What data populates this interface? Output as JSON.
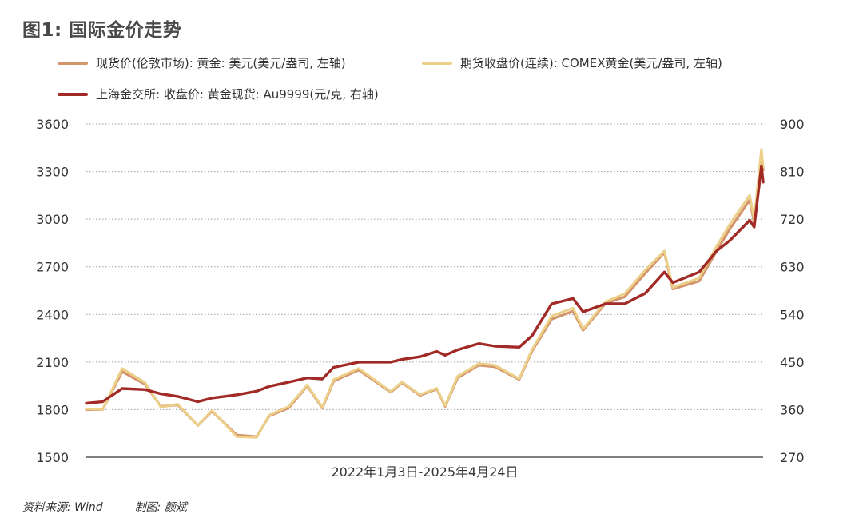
{
  "figure": {
    "title": "图1: 国际金价走势",
    "source": "资料来源: Wind",
    "maker": "制图: 颜斌"
  },
  "chart_data": {
    "type": "line",
    "title": "图1: 国际金价走势",
    "xlabel": "2022年1月3日-2025年4月24日",
    "x_range": [
      "2022-01-03",
      "2025-04-24"
    ],
    "left_axis": {
      "ylim": [
        1500,
        3600
      ],
      "ticks": [
        "3600",
        "3300",
        "3000",
        "2700",
        "2400",
        "2100",
        "1800",
        "1500"
      ]
    },
    "right_axis": {
      "ylim": [
        270,
        900
      ],
      "ticks": [
        "900",
        "810",
        "720",
        "630",
        "540",
        "450",
        "360",
        "270"
      ]
    },
    "grid": true,
    "legend_position": "top",
    "series": [
      {
        "name": "现货价(伦敦市场): 黄金: 美元(美元/盎司, 左轴)",
        "axis": "left",
        "color": "#d4956a",
        "x": [
          "2022-01-03",
          "2022-02-01",
          "2022-03-08",
          "2022-04-18",
          "2022-05-16",
          "2022-06-15",
          "2022-07-21",
          "2022-08-15",
          "2022-09-28",
          "2022-11-03",
          "2022-11-25",
          "2022-12-30",
          "2023-02-01",
          "2023-02-28",
          "2023-03-20",
          "2023-05-04",
          "2023-06-30",
          "2023-07-20",
          "2023-08-21",
          "2023-09-20",
          "2023-10-05",
          "2023-10-27",
          "2023-12-04",
          "2024-01-02",
          "2024-02-14",
          "2024-03-08",
          "2024-04-12",
          "2024-05-20",
          "2024-06-07",
          "2024-07-17",
          "2024-08-20",
          "2024-09-26",
          "2024-10-30",
          "2024-11-14",
          "2024-12-31",
          "2025-01-31",
          "2025-02-24",
          "2025-03-31",
          "2025-04-08",
          "2025-04-21",
          "2025-04-24"
        ],
        "y": [
          1800,
          1800,
          2040,
          1960,
          1820,
          1830,
          1700,
          1790,
          1640,
          1630,
          1760,
          1810,
          1950,
          1810,
          1980,
          2050,
          1910,
          1970,
          1890,
          1930,
          1820,
          2000,
          2080,
          2070,
          1990,
          2170,
          2370,
          2420,
          2300,
          2470,
          2510,
          2660,
          2790,
          2560,
          2610,
          2800,
          2940,
          3120,
          2980,
          3420,
          3310
        ]
      },
      {
        "name": "期货收盘价(连续): COMEX黄金(美元/盎司, 左轴)",
        "axis": "left",
        "color": "#ecd08a",
        "x": [
          "2022-01-03",
          "2022-02-01",
          "2022-03-08",
          "2022-04-18",
          "2022-05-16",
          "2022-06-15",
          "2022-07-21",
          "2022-08-15",
          "2022-09-28",
          "2022-11-03",
          "2022-11-25",
          "2022-12-30",
          "2023-02-01",
          "2023-02-28",
          "2023-03-20",
          "2023-05-04",
          "2023-06-30",
          "2023-07-20",
          "2023-08-21",
          "2023-09-20",
          "2023-10-05",
          "2023-10-27",
          "2023-12-04",
          "2024-01-02",
          "2024-02-14",
          "2024-03-08",
          "2024-04-12",
          "2024-05-20",
          "2024-06-07",
          "2024-07-17",
          "2024-08-20",
          "2024-09-26",
          "2024-10-30",
          "2024-11-14",
          "2024-12-31",
          "2025-01-31",
          "2025-02-24",
          "2025-03-31",
          "2025-04-08",
          "2025-04-21",
          "2025-04-24"
        ],
        "y": [
          1805,
          1800,
          2060,
          1970,
          1815,
          1835,
          1700,
          1795,
          1630,
          1625,
          1765,
          1820,
          1955,
          1815,
          1990,
          2060,
          1915,
          1975,
          1895,
          1935,
          1825,
          2010,
          2090,
          2080,
          1995,
          2180,
          2390,
          2440,
          2310,
          2480,
          2530,
          2680,
          2800,
          2570,
          2630,
          2830,
          2970,
          3150,
          3000,
          3440,
          3330
        ]
      },
      {
        "name": "上海金交所: 收盘价: 黄金现货: Au9999(元/克, 右轴)",
        "axis": "right",
        "color": "#a12a26",
        "x": [
          "2022-01-03",
          "2022-02-01",
          "2022-03-08",
          "2022-04-18",
          "2022-05-16",
          "2022-06-15",
          "2022-07-21",
          "2022-08-15",
          "2022-09-28",
          "2022-11-03",
          "2022-11-25",
          "2022-12-30",
          "2023-02-01",
          "2023-02-28",
          "2023-03-20",
          "2023-05-04",
          "2023-06-30",
          "2023-07-20",
          "2023-08-21",
          "2023-09-20",
          "2023-10-05",
          "2023-10-27",
          "2023-12-04",
          "2024-01-02",
          "2024-02-14",
          "2024-03-08",
          "2024-04-12",
          "2024-05-20",
          "2024-06-07",
          "2024-07-17",
          "2024-08-20",
          "2024-09-26",
          "2024-10-30",
          "2024-11-14",
          "2024-12-31",
          "2025-01-31",
          "2025-02-24",
          "2025-03-31",
          "2025-04-08",
          "2025-04-21",
          "2025-04-24"
        ],
        "y": [
          372,
          375,
          400,
          398,
          390,
          385,
          375,
          382,
          388,
          395,
          404,
          412,
          420,
          418,
          440,
          450,
          450,
          455,
          460,
          470,
          463,
          473,
          485,
          480,
          478,
          500,
          560,
          570,
          545,
          560,
          560,
          580,
          620,
          600,
          620,
          660,
          680,
          718,
          705,
          820,
          790
        ]
      }
    ]
  }
}
